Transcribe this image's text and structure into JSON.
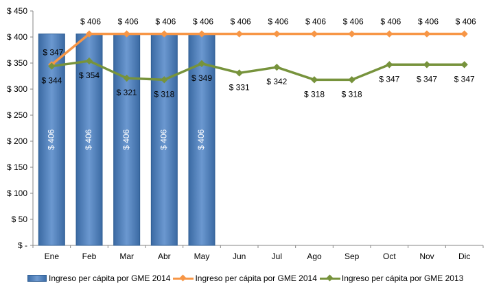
{
  "chart_data": {
    "type": "bar+line",
    "categories": [
      "Ene",
      "Feb",
      "Mar",
      "Abr",
      "May",
      "Jun",
      "Jul",
      "Ago",
      "Sep",
      "Oct",
      "Nov",
      "Dic"
    ],
    "ylim": [
      0,
      450
    ],
    "yticks": [
      0,
      50,
      100,
      150,
      200,
      250,
      300,
      350,
      400,
      450
    ],
    "ytick_labels": [
      "$ -",
      "$ 50",
      "$ 100",
      "$ 150",
      "$ 200",
      "$ 250",
      "$ 300",
      "$ 350",
      "$ 400",
      "$ 450"
    ],
    "grid": false,
    "legend_position": "bottom",
    "series": [
      {
        "name": "Ingreso per cápita por GME 2014",
        "kind": "bar",
        "color": "#4f81bd",
        "values": [
          406,
          406,
          406,
          406,
          406,
          null,
          null,
          null,
          null,
          null,
          null,
          null
        ],
        "labels": [
          "$ 406",
          "$ 406",
          "$ 406",
          "$ 406",
          "$ 406",
          null,
          null,
          null,
          null,
          null,
          null,
          null
        ]
      },
      {
        "name": "Ingreso per cápita por GME 2014",
        "kind": "line",
        "color": "#f79646",
        "values": [
          347,
          406,
          406,
          406,
          406,
          406,
          406,
          406,
          406,
          406,
          406,
          406
        ],
        "labels": [
          "$ 347",
          "$ 406",
          "$ 406",
          "$ 406",
          "$ 406",
          "$ 406",
          "$ 406",
          "$ 406",
          "$ 406",
          "$ 406",
          "$ 406",
          "$ 406"
        ]
      },
      {
        "name": "Ingreso per cápita por GME 2013",
        "kind": "line",
        "color": "#77933c",
        "values": [
          344,
          354,
          321,
          318,
          349,
          331,
          342,
          318,
          318,
          347,
          347,
          347
        ],
        "labels": [
          "$ 344",
          "$ 354",
          "$ 321",
          "$ 318",
          "$ 349",
          "$ 331",
          "$ 342",
          "$ 318",
          "$ 318",
          "$ 347",
          "$ 347",
          "$ 347"
        ]
      }
    ]
  }
}
